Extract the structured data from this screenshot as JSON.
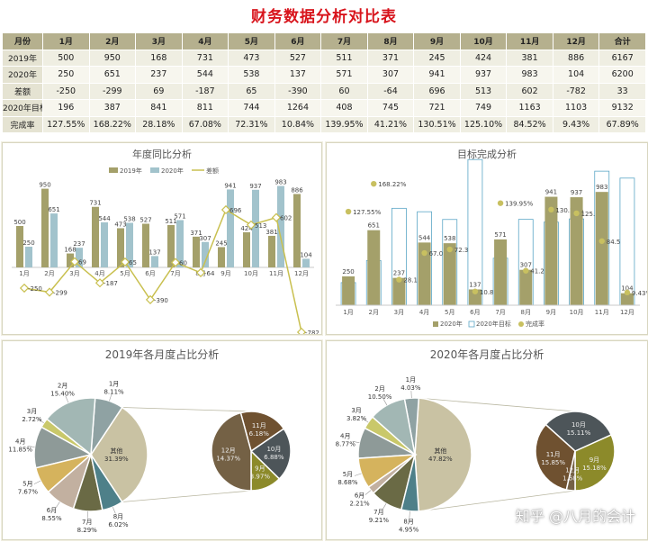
{
  "title": "财务数据分析对比表",
  "table": {
    "headers": [
      "月份",
      "1月",
      "2月",
      "3月",
      "4月",
      "5月",
      "6月",
      "7月",
      "8月",
      "9月",
      "10月",
      "11月",
      "12月",
      "合计"
    ],
    "rows": [
      {
        "label": "2019年",
        "values": [
          "500",
          "950",
          "168",
          "731",
          "473",
          "527",
          "511",
          "371",
          "245",
          "424",
          "381",
          "886",
          "6167"
        ]
      },
      {
        "label": "2020年",
        "values": [
          "250",
          "651",
          "237",
          "544",
          "538",
          "137",
          "571",
          "307",
          "941",
          "937",
          "983",
          "104",
          "6200"
        ]
      },
      {
        "label": "差额",
        "values": [
          "-250",
          "-299",
          "69",
          "-187",
          "65",
          "-390",
          "60",
          "-64",
          "696",
          "513",
          "602",
          "-782",
          "33"
        ]
      },
      {
        "label": "2020年目标",
        "values": [
          "196",
          "387",
          "841",
          "811",
          "744",
          "1264",
          "408",
          "745",
          "721",
          "749",
          "1163",
          "1103",
          "9132"
        ]
      },
      {
        "label": "完成率",
        "values": [
          "127.55%",
          "168.22%",
          "28.18%",
          "67.08%",
          "72.31%",
          "10.84%",
          "139.95%",
          "41.21%",
          "130.51%",
          "125.10%",
          "84.52%",
          "9.43%",
          "67.89%"
        ]
      }
    ]
  },
  "colors": {
    "c2019": "#a4a06a",
    "c2020": "#a2c3cc",
    "diff": "#c9c050",
    "target": "#5ba6c6",
    "rate": "#c8c060",
    "title": "#d8141c"
  },
  "chart_data": [
    {
      "type": "bar",
      "title": "年度同比分析",
      "categories": [
        "1月",
        "2月",
        "3月",
        "4月",
        "5月",
        "6月",
        "7月",
        "8月",
        "9月",
        "10月",
        "11月",
        "12月"
      ],
      "series": [
        {
          "name": "2019年",
          "values": [
            500,
            950,
            168,
            731,
            473,
            527,
            511,
            371,
            245,
            424,
            381,
            886
          ]
        },
        {
          "name": "2020年",
          "values": [
            250,
            651,
            237,
            544,
            538,
            137,
            571,
            307,
            941,
            937,
            983,
            104
          ]
        },
        {
          "name": "差额",
          "type": "line",
          "values": [
            -250,
            -299,
            69,
            -187,
            65,
            -390,
            60,
            -64,
            696,
            513,
            602,
            -782
          ]
        }
      ]
    },
    {
      "type": "bar",
      "title": "目标完成分析",
      "categories": [
        "1月",
        "2月",
        "3月",
        "4月",
        "5月",
        "6月",
        "7月",
        "8月",
        "9月",
        "10月",
        "11月",
        "12月"
      ],
      "series": [
        {
          "name": "2020年",
          "values": [
            250,
            651,
            237,
            544,
            538,
            137,
            571,
            307,
            941,
            937,
            983,
            104
          ]
        },
        {
          "name": "2020年目标",
          "values": [
            196,
            387,
            841,
            811,
            744,
            1264,
            408,
            745,
            721,
            749,
            1163,
            1103
          ]
        },
        {
          "name": "完成率",
          "type": "scatter",
          "values": [
            127.55,
            168.22,
            28.18,
            67.08,
            72.31,
            10.84,
            139.95,
            41.21,
            130.51,
            125.1,
            84.52,
            9.43
          ]
        }
      ],
      "rate_labels": [
        "127.55%",
        "168.22%",
        "28.18%",
        "67.08%",
        "72.31%",
        "10.84%",
        "139.95%",
        "41.21%",
        "130.51%",
        "125.10%",
        "84.52%",
        "9.43%"
      ]
    },
    {
      "type": "pie",
      "title": "2019年各月度占比分析",
      "main": [
        {
          "label": "1月",
          "pct": "8.11%",
          "value": 8.11
        },
        {
          "label": "2月",
          "pct": "15.40%",
          "value": 15.4
        },
        {
          "label": "3月",
          "pct": "2.72%",
          "value": 2.72
        },
        {
          "label": "4月",
          "pct": "11.85%",
          "value": 11.85
        },
        {
          "label": "5月",
          "pct": "7.67%",
          "value": 7.67
        },
        {
          "label": "6月",
          "pct": "8.55%",
          "value": 8.55
        },
        {
          "label": "7月",
          "pct": "8.29%",
          "value": 8.29
        },
        {
          "label": "8月",
          "pct": "6.02%",
          "value": 6.02
        },
        {
          "label": "其他",
          "pct": "31.39%",
          "value": 31.39
        }
      ],
      "sub": [
        {
          "label": "9月",
          "pct": "3.97%",
          "value": 3.97
        },
        {
          "label": "10月",
          "pct": "6.88%",
          "value": 6.88
        },
        {
          "label": "11月",
          "pct": "6.18%",
          "value": 6.18
        },
        {
          "label": "12月",
          "pct": "14.37%",
          "value": 14.37
        }
      ]
    },
    {
      "type": "pie",
      "title": "2020年各月度占比分析",
      "main": [
        {
          "label": "1月",
          "pct": "4.03%",
          "value": 4.03
        },
        {
          "label": "2月",
          "pct": "10.50%",
          "value": 10.5
        },
        {
          "label": "3月",
          "pct": "3.82%",
          "value": 3.82
        },
        {
          "label": "4月",
          "pct": "8.77%",
          "value": 8.77
        },
        {
          "label": "5月",
          "pct": "8.68%",
          "value": 8.68
        },
        {
          "label": "6月",
          "pct": "2.21%",
          "value": 2.21
        },
        {
          "label": "7月",
          "pct": "9.21%",
          "value": 9.21
        },
        {
          "label": "8月",
          "pct": "4.95%",
          "value": 4.95
        },
        {
          "label": "其他",
          "pct": "47.82%",
          "value": 47.82
        }
      ],
      "sub": [
        {
          "label": "9月",
          "pct": "15.18%",
          "value": 15.18
        },
        {
          "label": "10月",
          "pct": "15.11%",
          "value": 15.11
        },
        {
          "label": "11月",
          "pct": "15.85%",
          "value": 15.85
        },
        {
          "label": "12月",
          "pct": "1.68%",
          "value": 1.68
        }
      ]
    }
  ],
  "pie_colors": {
    "main": [
      "#8fa2a3",
      "#a2b7b4",
      "#c9c86a",
      "#8e9a98",
      "#d5b35d",
      "#c2b0a0",
      "#6a6a45",
      "#4e8089",
      "#c9c2a3"
    ],
    "sub": [
      "#8c8a2a",
      "#4d5559",
      "#6f5130",
      "#746145"
    ]
  },
  "watermark": "知乎 @八月的会计"
}
